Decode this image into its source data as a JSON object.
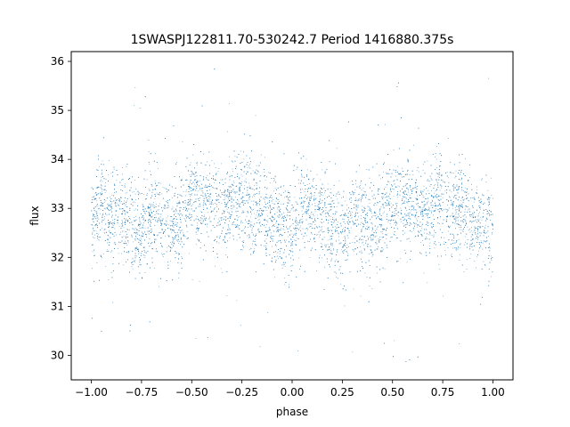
{
  "chart_data": {
    "type": "scatter",
    "title": "1SWASPJ122811.70-530242.7 Period 1416880.375s",
    "xlabel": "phase",
    "ylabel": "flux",
    "xlim": [
      -1.1,
      1.1
    ],
    "ylim": [
      29.5,
      36.2
    ],
    "xticks": [
      -1.0,
      -0.75,
      -0.5,
      -0.25,
      0.0,
      0.25,
      0.5,
      0.75,
      1.0
    ],
    "xtick_labels": [
      "−1.00",
      "−0.75",
      "−0.50",
      "−0.25",
      "0.00",
      "0.25",
      "0.50",
      "0.75",
      "1.00"
    ],
    "yticks": [
      30,
      31,
      32,
      33,
      34,
      35,
      36
    ],
    "ytick_labels": [
      "30",
      "31",
      "32",
      "33",
      "34",
      "35",
      "36"
    ],
    "grid": false,
    "marker_color": "#1f77b4",
    "series": [
      {
        "x_range": [
          -1.0,
          1.0
        ],
        "approx_points": 30000,
        "baseline": 32.75,
        "typical_spread": [
          31.8,
          33.7
        ],
        "outlier_range": [
          29.8,
          35.9
        ],
        "points": [
          [
            -1.0,
            32.6
          ],
          [
            -0.95,
            33.1
          ],
          [
            -0.9,
            32.8
          ],
          [
            -0.85,
            32.9
          ],
          [
            -0.8,
            32.6
          ],
          [
            -0.75,
            32.5
          ],
          [
            -0.7,
            32.9
          ],
          [
            -0.65,
            32.8
          ],
          [
            -0.6,
            32.6
          ],
          [
            -0.55,
            32.8
          ],
          [
            -0.5,
            33.2
          ],
          [
            -0.45,
            33.0
          ],
          [
            -0.4,
            33.1
          ],
          [
            -0.35,
            32.9
          ],
          [
            -0.3,
            33.1
          ],
          [
            -0.25,
            33.1
          ],
          [
            -0.2,
            33.0
          ],
          [
            -0.15,
            32.9
          ],
          [
            -0.1,
            32.8
          ],
          [
            -0.05,
            32.6
          ],
          [
            0.0,
            32.6
          ],
          [
            0.05,
            33.1
          ],
          [
            0.1,
            32.8
          ],
          [
            0.15,
            32.9
          ],
          [
            0.2,
            32.6
          ],
          [
            0.25,
            32.5
          ],
          [
            0.3,
            32.9
          ],
          [
            0.35,
            32.8
          ],
          [
            0.4,
            32.6
          ],
          [
            0.45,
            32.8
          ],
          [
            0.5,
            33.2
          ],
          [
            0.55,
            33.0
          ],
          [
            0.6,
            33.1
          ],
          [
            0.65,
            32.9
          ],
          [
            0.7,
            33.1
          ],
          [
            0.75,
            33.1
          ],
          [
            0.8,
            33.0
          ],
          [
            0.85,
            32.9
          ],
          [
            0.9,
            32.8
          ],
          [
            0.95,
            32.6
          ],
          [
            1.0,
            32.6
          ]
        ]
      }
    ]
  }
}
